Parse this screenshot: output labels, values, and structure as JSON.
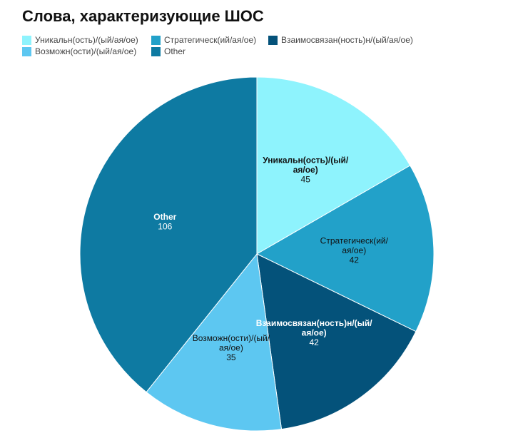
{
  "chart_data": {
    "type": "pie",
    "title": "Слова, характеризующие ШОС",
    "legend_position": "top-left",
    "slices": [
      {
        "label": "Уникальн(ость)/(ый/ая/ое)",
        "label_lines": [
          "Уникальн(ость)/(ый/",
          "ая/ое)"
        ],
        "value": 45,
        "color": "#8ef3fd",
        "label_color": "#111111",
        "label_bold": true
      },
      {
        "label": "Стратегическ(ий/ая/ое)",
        "label_lines": [
          "Стратегическ(ий/",
          "ая/ое)"
        ],
        "value": 42,
        "color": "#22a1c9",
        "label_color": "#111111",
        "label_bold": false
      },
      {
        "label": "Взаимосвязан(ность)н/(ый/ая/ое)",
        "label_lines": [
          "Взаимосвязан(ность)н/(ый/",
          "ая/ое)"
        ],
        "value": 42,
        "color": "#04527a",
        "label_color": "#ffffff",
        "label_bold": true
      },
      {
        "label": "Возможн(ости)/(ый/ая/ое)",
        "label_lines": [
          "Возможн(ости)/(ый/",
          "ая/ое)"
        ],
        "value": 35,
        "color": "#5dc7f1",
        "label_color": "#111111",
        "label_bold": false
      },
      {
        "label": "Other",
        "label_lines": [
          "Other"
        ],
        "value": 106,
        "color": "#0e7aa2",
        "label_color": "#ffffff",
        "label_bold": true
      }
    ]
  }
}
